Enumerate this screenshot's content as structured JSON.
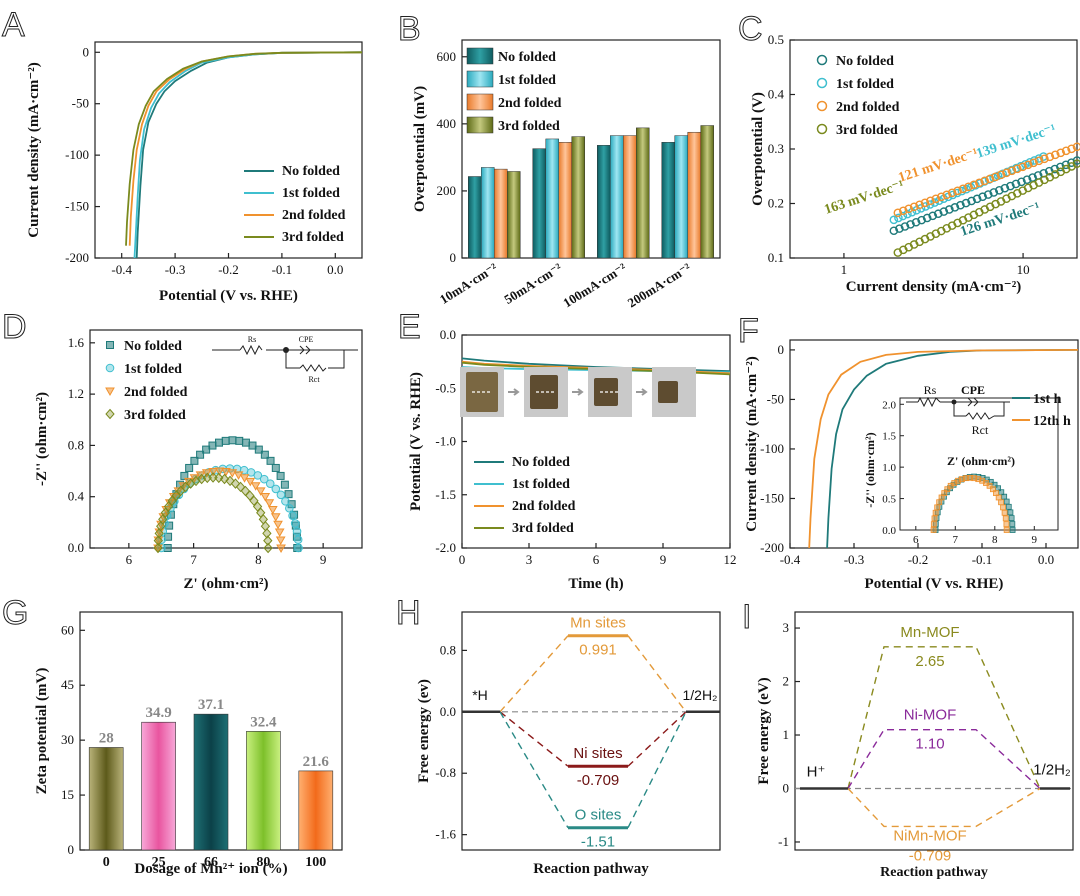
{
  "panel_letters": [
    "A",
    "B",
    "C",
    "D",
    "E",
    "F",
    "G",
    "H",
    "I"
  ],
  "colors": {
    "no_folded": "#1f7a7a",
    "first_folded": "#3fbfcf",
    "second_folded": "#f0922e",
    "third_folded": "#7a8a1e",
    "mn_sites": "#e39a3a",
    "ni_sites": "#8b1a1a",
    "o_sites": "#2a8a86",
    "mn_mof": "#8a8a1e",
    "ni_mof": "#8a2a9a",
    "nimn_mof": "#e39a3a",
    "baseline": "#888888",
    "g_value_label": "#888888"
  },
  "chart_data": [
    {
      "id": "A",
      "type": "line",
      "xlabel": "Potential (V vs. RHE)",
      "ylabel": "Current density (mA·cm⁻²)",
      "xlim": [
        -0.45,
        0.05
      ],
      "ylim": [
        -200,
        10
      ],
      "xticks": [
        -0.4,
        -0.3,
        -0.2,
        -0.1,
        0.0
      ],
      "xtick_labels": [
        "-0.4",
        "-0.3",
        "-0.2",
        "-0.1",
        "0.0"
      ],
      "yticks": [
        -200,
        -150,
        -100,
        -50,
        0
      ],
      "ytick_labels": [
        "-200",
        "-150",
        "-100",
        "-50",
        "0"
      ],
      "legend": [
        "No folded",
        "1st folded",
        "2nd folded",
        "3rd folded"
      ],
      "series": [
        {
          "name": "No folded",
          "points": [
            [
              -0.372,
              -200
            ],
            [
              -0.37,
              -175
            ],
            [
              -0.365,
              -130
            ],
            [
              -0.36,
              -95
            ],
            [
              -0.35,
              -68
            ],
            [
              -0.335,
              -50
            ],
            [
              -0.32,
              -38
            ],
            [
              -0.3,
              -28
            ],
            [
              -0.27,
              -18
            ],
            [
              -0.24,
              -10
            ],
            [
              -0.2,
              -5
            ],
            [
              -0.15,
              -2
            ],
            [
              -0.1,
              -0.5
            ],
            [
              0.05,
              0
            ]
          ]
        },
        {
          "name": "1st folded",
          "points": [
            [
              -0.376,
              -200
            ],
            [
              -0.374,
              -180
            ],
            [
              -0.37,
              -140
            ],
            [
              -0.366,
              -105
            ],
            [
              -0.358,
              -75
            ],
            [
              -0.345,
              -54
            ],
            [
              -0.33,
              -40
            ],
            [
              -0.31,
              -29
            ],
            [
              -0.28,
              -18
            ],
            [
              -0.25,
              -10
            ],
            [
              -0.2,
              -5
            ],
            [
              -0.15,
              -2
            ],
            [
              -0.1,
              -0.5
            ],
            [
              0.05,
              0
            ]
          ]
        },
        {
          "name": "2nd folded",
          "points": [
            [
              -0.385,
              -188
            ],
            [
              -0.383,
              -160
            ],
            [
              -0.378,
              -125
            ],
            [
              -0.372,
              -95
            ],
            [
              -0.362,
              -70
            ],
            [
              -0.35,
              -52
            ],
            [
              -0.335,
              -38
            ],
            [
              -0.31,
              -26
            ],
            [
              -0.28,
              -16
            ],
            [
              -0.25,
              -9
            ],
            [
              -0.2,
              -4
            ],
            [
              -0.15,
              -1.5
            ],
            [
              -0.1,
              -0.5
            ],
            [
              0.05,
              0
            ]
          ]
        },
        {
          "name": "3rd folded",
          "points": [
            [
              -0.392,
              -188
            ],
            [
              -0.39,
              -165
            ],
            [
              -0.385,
              -128
            ],
            [
              -0.378,
              -95
            ],
            [
              -0.368,
              -70
            ],
            [
              -0.355,
              -52
            ],
            [
              -0.34,
              -38
            ],
            [
              -0.315,
              -26
            ],
            [
              -0.285,
              -16
            ],
            [
              -0.25,
              -9
            ],
            [
              -0.2,
              -4
            ],
            [
              -0.15,
              -1.5
            ],
            [
              -0.1,
              -0.5
            ],
            [
              0.05,
              0
            ]
          ]
        }
      ]
    },
    {
      "id": "B",
      "type": "bar",
      "ylabel": "Overpotential (mV)",
      "ylim": [
        0,
        650
      ],
      "yticks": [
        0,
        200,
        400,
        600
      ],
      "ytick_labels": [
        "0",
        "200",
        "400",
        "600"
      ],
      "categories": [
        "10mA·cm⁻²",
        "50mA·cm⁻²",
        "100mA·cm⁻²",
        "200mA·cm⁻²"
      ],
      "legend": [
        "No folded",
        "1st folded",
        "2nd folded",
        "3rd folded"
      ],
      "series": [
        {
          "name": "No folded",
          "values": [
            243,
            326,
            336,
            345
          ]
        },
        {
          "name": "1st folded",
          "values": [
            270,
            355,
            365,
            365
          ]
        },
        {
          "name": "2nd folded",
          "values": [
            265,
            345,
            365,
            375
          ]
        },
        {
          "name": "3rd folded",
          "values": [
            258,
            362,
            388,
            395
          ]
        }
      ]
    },
    {
      "id": "C",
      "type": "scatter",
      "xlabel": "Current density (mA·cm⁻²)",
      "ylabel": "Overpotential (V)",
      "xscale": "log",
      "xlim": [
        0.5,
        20
      ],
      "ylim": [
        0.1,
        0.5
      ],
      "xticks": [
        1,
        10
      ],
      "xtick_labels": [
        "1",
        "10"
      ],
      "yticks": [
        0.1,
        0.2,
        0.3,
        0.4,
        0.5
      ],
      "ytick_labels": [
        "0.1",
        "0.2",
        "0.3",
        "0.4",
        "0.5"
      ],
      "legend": [
        "No folded",
        "1st folded",
        "2nd folded",
        "3rd folded"
      ],
      "annotations": [
        "139 mV·dec⁻¹",
        "121 mV·dec⁻¹",
        "163 mV·dec⁻¹",
        "126 mV·dec⁻¹"
      ],
      "series": [
        {
          "name": "No folded",
          "x_range": [
            1.9,
            20
          ],
          "y_start": 0.15,
          "slope": 0.126
        },
        {
          "name": "1st folded",
          "x_range": [
            1.9,
            13
          ],
          "y_start": 0.17,
          "slope": 0.139
        },
        {
          "name": "2nd folded",
          "x_range": [
            2.0,
            20
          ],
          "y_start": 0.183,
          "slope": 0.121
        },
        {
          "name": "3rd folded",
          "x_range": [
            2.0,
            20
          ],
          "y_start": 0.11,
          "slope": 0.163
        }
      ]
    },
    {
      "id": "D",
      "type": "scatter",
      "xlabel": "Z' (ohm·cm²)",
      "ylabel": "-Z'' (ohm·cm²)",
      "xlim": [
        5.4,
        9.6
      ],
      "ylim": [
        0,
        1.7
      ],
      "xticks": [
        6,
        7,
        8,
        9
      ],
      "xtick_labels": [
        "6",
        "7",
        "8",
        "9"
      ],
      "yticks": [
        0,
        0.4,
        0.8,
        1.2,
        1.6
      ],
      "ytick_labels": [
        "0.0",
        "0.4",
        "0.8",
        "1.2",
        "1.6"
      ],
      "legend": [
        "No folded",
        "1st folded",
        "2nd folded",
        "3rd folded"
      ],
      "inset_labels": [
        "Rs",
        "CPE",
        "Rct"
      ],
      "series": [
        {
          "name": "No folded",
          "arc": {
            "x_start": 6.6,
            "x_end": 8.6,
            "peak": 0.84
          }
        },
        {
          "name": "1st folded",
          "arc": {
            "x_start": 6.5,
            "x_end": 8.62,
            "peak": 0.62
          }
        },
        {
          "name": "2nd folded",
          "arc": {
            "x_start": 6.45,
            "x_end": 8.35,
            "peak": 0.6
          }
        },
        {
          "name": "3rd folded",
          "arc": {
            "x_start": 6.45,
            "x_end": 8.15,
            "peak": 0.55
          }
        }
      ]
    },
    {
      "id": "E",
      "type": "line",
      "xlabel": "Time (h)",
      "ylabel": "Potential (V vs. RHE)",
      "xlim": [
        0,
        12
      ],
      "ylim": [
        -2.0,
        0.0
      ],
      "xticks": [
        0,
        3,
        6,
        9,
        12
      ],
      "xtick_labels": [
        "0",
        "3",
        "6",
        "9",
        "12"
      ],
      "yticks": [
        -2.0,
        -1.5,
        -1.0,
        -0.5,
        0.0
      ],
      "ytick_labels": [
        "-2.0",
        "-1.5",
        "-1.0",
        "-0.5",
        "0.0"
      ],
      "legend": [
        "No folded",
        "1st folded",
        "2nd folded",
        "3rd folded"
      ],
      "series": [
        {
          "name": "No folded",
          "points": [
            [
              0,
              -0.22
            ],
            [
              1,
              -0.24
            ],
            [
              3,
              -0.27
            ],
            [
              6,
              -0.3
            ],
            [
              9,
              -0.32
            ],
            [
              12,
              -0.34
            ]
          ]
        },
        {
          "name": "1st folded",
          "points": [
            [
              0,
              -0.3
            ],
            [
              1,
              -0.31
            ],
            [
              3,
              -0.32
            ],
            [
              6,
              -0.33
            ],
            [
              9,
              -0.34
            ],
            [
              12,
              -0.35
            ]
          ]
        },
        {
          "name": "2nd folded",
          "points": [
            [
              0,
              -0.25
            ],
            [
              1,
              -0.27
            ],
            [
              3,
              -0.29
            ],
            [
              6,
              -0.31
            ],
            [
              9,
              -0.33
            ],
            [
              12,
              -0.36
            ]
          ]
        },
        {
          "name": "3rd folded",
          "points": [
            [
              0,
              -0.26
            ],
            [
              1,
              -0.28
            ],
            [
              3,
              -0.3
            ],
            [
              6,
              -0.32
            ],
            [
              9,
              -0.34
            ],
            [
              12,
              -0.37
            ]
          ]
        }
      ]
    },
    {
      "id": "F",
      "type": "line",
      "xlabel": "Potential (V vs. RHE)",
      "ylabel": "Current density (mA·cm⁻²)",
      "xlim": [
        -0.4,
        0.05
      ],
      "ylim": [
        -200,
        10
      ],
      "xticks": [
        -0.4,
        -0.3,
        -0.2,
        -0.1,
        0.0
      ],
      "xtick_labels": [
        "-0.4",
        "-0.3",
        "-0.2",
        "-0.1",
        "0.0"
      ],
      "yticks": [
        -200,
        -150,
        -100,
        -50,
        0
      ],
      "ytick_labels": [
        "-200",
        "-150",
        "-100",
        "-50",
        "0"
      ],
      "legend": [
        "1st h",
        "12th h"
      ],
      "series": [
        {
          "name": "1st h",
          "points": [
            [
              -0.342,
              -200
            ],
            [
              -0.34,
              -170
            ],
            [
              -0.335,
              -120
            ],
            [
              -0.328,
              -85
            ],
            [
              -0.318,
              -60
            ],
            [
              -0.3,
              -40
            ],
            [
              -0.28,
              -26
            ],
            [
              -0.25,
              -14
            ],
            [
              -0.2,
              -6
            ],
            [
              -0.15,
              -2
            ],
            [
              -0.1,
              -0.5
            ],
            [
              0.05,
              0
            ]
          ]
        },
        {
          "name": "12th h",
          "points": [
            [
              -0.37,
              -200
            ],
            [
              -0.368,
              -170
            ],
            [
              -0.362,
              -110
            ],
            [
              -0.352,
              -70
            ],
            [
              -0.34,
              -45
            ],
            [
              -0.32,
              -25
            ],
            [
              -0.29,
              -12
            ],
            [
              -0.25,
              -5
            ],
            [
              -0.2,
              -2
            ],
            [
              -0.1,
              -0.5
            ],
            [
              0.05,
              0
            ]
          ]
        }
      ],
      "inset": {
        "xlabel": "Z' (ohm·cm²)",
        "ylabel": "-Z'' (ohm·cm²)",
        "xlim": [
          5.6,
          9.6
        ],
        "ylim": [
          0,
          2.1
        ],
        "xticks": [
          6,
          7,
          8,
          9
        ],
        "xtick_labels": [
          "6",
          "7",
          "8",
          "9"
        ],
        "yticks": [
          0,
          0.5,
          1.0,
          1.5,
          2.0
        ],
        "ytick_labels": [
          "0.0",
          "0.5",
          "1.0",
          "1.5",
          "2.0"
        ],
        "circuit_labels": [
          "Rs",
          "CPE",
          "Rct"
        ],
        "series": [
          {
            "name": "1st h",
            "arc": {
              "x_start": 6.5,
              "x_end": 8.45,
              "peak": 0.85
            }
          },
          {
            "name": "12th h",
            "arc": {
              "x_start": 6.45,
              "x_end": 8.3,
              "peak": 0.83
            }
          }
        ]
      }
    },
    {
      "id": "G",
      "type": "bar",
      "xlabel": "Dosage of Mn²⁺ ion (%)",
      "ylabel": "Zeta potential (mV)",
      "ylim": [
        0,
        65
      ],
      "yticks": [
        0,
        15,
        30,
        45,
        60
      ],
      "ytick_labels": [
        "0",
        "15",
        "30",
        "45",
        "60"
      ],
      "categories": [
        "0",
        "25",
        "66",
        "80",
        "100"
      ],
      "values": [
        28,
        34.9,
        37.1,
        32.4,
        21.6
      ],
      "value_labels": [
        "28",
        "34.9",
        "37.1",
        "32.4",
        "21.6"
      ],
      "bar_colors": [
        [
          "#b9b37a",
          "#5d5a1a"
        ],
        [
          "#f7a8d8",
          "#e9559f"
        ],
        [
          "#1e6f74",
          "#0b4148"
        ],
        [
          "#c9f080",
          "#7dc02a"
        ],
        [
          "#ffb070",
          "#f26a1b"
        ]
      ]
    },
    {
      "id": "H",
      "type": "line",
      "xlabel": "Reaction pathway",
      "ylabel": "Free energy (ev)",
      "ylim": [
        -1.8,
        1.3
      ],
      "yticks": [
        -1.6,
        -0.8,
        0.0,
        0.8
      ],
      "ytick_labels": [
        "-1.6",
        "-0.8",
        "0.0",
        "0.8"
      ],
      "start_label": "*H",
      "end_label": "1/2H₂",
      "series": [
        {
          "name": "Mn sites",
          "value": 0.991,
          "value_label": "0.991"
        },
        {
          "name": "Ni sites",
          "value": -0.709,
          "value_label": "-0.709"
        },
        {
          "name": "O sites",
          "value": -1.51,
          "value_label": "-1.51"
        }
      ]
    },
    {
      "id": "I",
      "type": "line",
      "xlabel": "Reaction pathway",
      "ylabel": "Free energy (eV)",
      "ylim": [
        -1.15,
        3.3
      ],
      "yticks": [
        -1,
        0,
        1,
        2,
        3
      ],
      "ytick_labels": [
        "-1",
        "0",
        "1",
        "2",
        "3"
      ],
      "start_label": "H⁺",
      "end_label": "1/2H₂",
      "series": [
        {
          "name": "Mn-MOF",
          "value": 2.65,
          "value_label": "2.65"
        },
        {
          "name": "Ni-MOF",
          "value": 1.1,
          "value_label": "1.10"
        },
        {
          "name": "NiMn-MOF",
          "value": -0.709,
          "value_label": "-0.709"
        }
      ]
    }
  ]
}
